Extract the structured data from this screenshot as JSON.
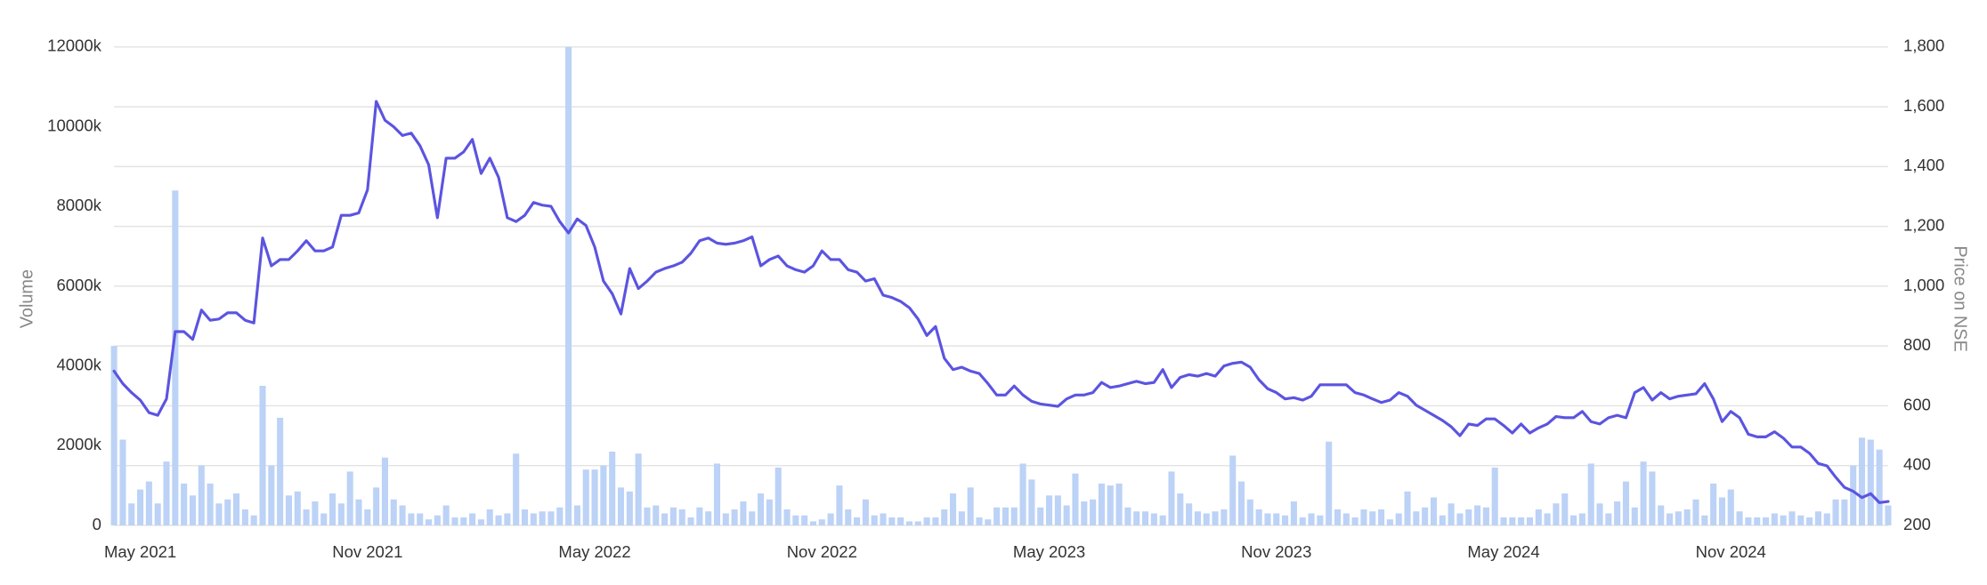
{
  "chart_data": {
    "type": "combo",
    "ylabel": "Volume",
    "y2label": "Price on NSE",
    "categories": [
      null,
      null,
      null,
      "May 2021",
      null,
      null,
      null,
      null,
      null,
      null,
      null,
      null,
      null,
      null,
      null,
      null,
      null,
      null,
      null,
      null,
      null,
      null,
      null,
      null,
      null,
      null,
      null,
      null,
      null,
      "Nov 2021",
      null,
      null,
      null,
      null,
      null,
      null,
      null,
      null,
      null,
      null,
      null,
      null,
      null,
      null,
      null,
      null,
      null,
      null,
      null,
      null,
      null,
      null,
      null,
      null,
      null,
      "May 2022",
      null,
      null,
      null,
      null,
      null,
      null,
      null,
      null,
      null,
      null,
      null,
      null,
      null,
      null,
      null,
      null,
      null,
      null,
      null,
      null,
      null,
      null,
      null,
      null,
      null,
      "Nov 2022",
      null,
      null,
      null,
      null,
      null,
      null,
      null,
      null,
      null,
      null,
      null,
      null,
      null,
      null,
      null,
      null,
      null,
      null,
      null,
      null,
      null,
      null,
      null,
      null,
      null,
      "May 2023",
      null,
      null,
      null,
      null,
      null,
      null,
      null,
      null,
      null,
      null,
      null,
      null,
      null,
      null,
      null,
      null,
      null,
      null,
      null,
      null,
      null,
      null,
      null,
      null,
      null,
      "Nov 2023",
      null,
      null,
      null,
      null,
      null,
      null,
      null,
      null,
      null,
      null,
      null,
      null,
      null,
      null,
      null,
      null,
      null,
      null,
      null,
      null,
      null,
      null,
      null,
      null,
      null,
      "May 2024",
      null,
      null,
      null,
      null,
      null,
      null,
      null,
      null,
      null,
      null,
      null,
      null,
      null,
      null,
      null,
      null,
      null,
      null,
      null,
      null,
      null,
      null,
      null,
      null,
      null,
      "Nov 2024",
      null,
      null,
      null,
      null,
      null,
      null,
      null,
      null,
      null,
      null,
      null,
      null,
      null,
      null,
      null,
      null,
      null,
      null
    ],
    "series": [
      {
        "type": "bar",
        "color": "#bcd2f6",
        "values": [
          4500,
          2150,
          550,
          900,
          1100,
          550,
          1600,
          8400,
          1050,
          750,
          1500,
          1050,
          550,
          650,
          800,
          400,
          250,
          3500,
          1500,
          2700,
          750,
          850,
          400,
          600,
          300,
          800,
          550,
          1350,
          650,
          400,
          950,
          1700,
          650,
          500,
          300,
          300,
          150,
          250,
          500,
          200,
          200,
          300,
          150,
          400,
          250,
          300,
          1800,
          400,
          300,
          350,
          350,
          450,
          12000,
          500,
          1400,
          1400,
          1500,
          1850,
          950,
          850,
          1800,
          450,
          500,
          300,
          450,
          400,
          200,
          450,
          350,
          1550,
          300,
          400,
          600,
          350,
          800,
          650,
          1450,
          400,
          250,
          250,
          100,
          150,
          300,
          1000,
          400,
          200,
          650,
          250,
          300,
          200,
          200,
          100,
          100,
          200,
          200,
          400,
          800,
          350,
          950,
          200,
          150,
          450,
          450,
          450,
          1550,
          1150,
          450,
          750,
          750,
          500,
          1300,
          600,
          650,
          1050,
          1000,
          1050,
          450,
          350,
          350,
          300,
          250,
          1350,
          800,
          550,
          350,
          300,
          350,
          400,
          1750,
          1100,
          650,
          400,
          300,
          300,
          250,
          600,
          200,
          300,
          250,
          2100,
          400,
          300,
          200,
          400,
          350,
          400,
          150,
          300,
          850,
          350,
          450,
          700,
          250,
          550,
          300,
          400,
          500,
          450,
          1450,
          200,
          200,
          200,
          200,
          400,
          300,
          550,
          800,
          250,
          300,
          1550,
          550,
          300,
          600,
          1100,
          450,
          1600,
          1350,
          500,
          300,
          350,
          400,
          650,
          250,
          1050,
          700,
          900,
          350,
          200,
          200,
          200,
          300,
          250,
          350,
          250,
          200,
          350,
          300,
          650,
          650,
          1500,
          2200,
          2150,
          1900,
          500
        ]
      },
      {
        "type": "line",
        "axis": "y2",
        "color": "#5b54e0",
        "values": [
          716,
          674,
          644,
          619,
          577,
          568,
          623,
          848,
          848,
          822,
          920,
          886,
          890,
          911,
          911,
          886,
          877,
          1161,
          1068,
          1089,
          1089,
          1118,
          1152,
          1118,
          1118,
          1131,
          1237,
          1237,
          1245,
          1322,
          1618,
          1555,
          1533,
          1504,
          1512,
          1470,
          1406,
          1229,
          1428,
          1428,
          1449,
          1491,
          1377,
          1428,
          1364,
          1229,
          1216,
          1237,
          1280,
          1271,
          1267,
          1216,
          1178,
          1225,
          1203,
          1131,
          1017,
          975,
          907,
          1059,
          992,
          1017,
          1047,
          1059,
          1068,
          1080,
          1110,
          1152,
          1161,
          1144,
          1140,
          1144,
          1152,
          1165,
          1068,
          1089,
          1101,
          1068,
          1055,
          1047,
          1068,
          1118,
          1089,
          1089,
          1055,
          1047,
          1017,
          1025,
          970,
          962,
          949,
          928,
          890,
          835,
          865,
          759,
          721,
          729,
          716,
          708,
          674,
          636,
          636,
          666,
          636,
          615,
          606,
          602,
          598,
          623,
          636,
          636,
          644,
          678,
          661,
          666,
          674,
          682,
          674,
          678,
          721,
          661,
          695,
          704,
          699,
          708,
          699,
          733,
          742,
          746,
          729,
          687,
          657,
          644,
          623,
          627,
          619,
          632,
          670,
          670,
          670,
          670,
          644,
          636,
          623,
          611,
          619,
          644,
          632,
          602,
          585,
          568,
          551,
          530,
          500,
          539,
          534,
          556,
          556,
          534,
          509,
          539,
          509,
          526,
          539,
          564,
          560,
          560,
          581,
          547,
          539,
          560,
          568,
          560,
          644,
          661,
          619,
          644,
          623,
          632,
          636,
          640,
          674,
          623,
          547,
          581,
          560,
          505,
          496,
          496,
          513,
          492,
          462,
          462,
          441,
          407,
          399,
          361,
          327,
          314,
          293,
          306,
          276,
          280
        ]
      }
    ],
    "ylim": [
      0,
      12000
    ],
    "yticks": [
      {
        "value": 0,
        "label": "0"
      },
      {
        "value": 2000,
        "label": "2000k"
      },
      {
        "value": 4000,
        "label": "4000k"
      },
      {
        "value": 6000,
        "label": "6000k"
      },
      {
        "value": 8000,
        "label": "8000k"
      },
      {
        "value": 10000,
        "label": "10000k"
      },
      {
        "value": 12000,
        "label": "12000k"
      }
    ],
    "y2lim": [
      200,
      1800
    ],
    "y2ticks": [
      200,
      400,
      600,
      800,
      {
        "value": 1000,
        "label": "1,000"
      },
      {
        "value": 1200,
        "label": "1,200"
      },
      {
        "value": 1400,
        "label": "1,400"
      },
      {
        "value": 1600,
        "label": "1,600"
      },
      {
        "value": 1800,
        "label": "1,800"
      }
    ],
    "grid": true
  }
}
